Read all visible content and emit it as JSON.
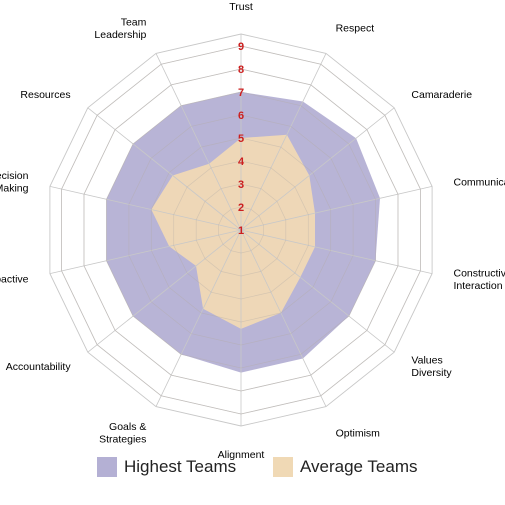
{
  "chart_data": {
    "type": "radar",
    "axes": [
      "Trust",
      "Respect",
      "Camaraderie",
      "Communication",
      "Constructive\nInteraction",
      "Values\nDiversity",
      "Optimism",
      "Alignment",
      "Goals &\nStrategies",
      "Accountability",
      "Proactive",
      "Decision\nMaking",
      "Resources",
      "Team\nLeadership"
    ],
    "ticks": [
      "1",
      "2",
      "3",
      "4",
      "5",
      "6",
      "7",
      "8",
      "9"
    ],
    "rmin": 1,
    "rmax": 9,
    "series": [
      {
        "name": "Highest Teams",
        "color": "#b4b0d4",
        "values": [
          7.0,
          7.2,
          7.4,
          7.2,
          7.0,
          7.0,
          7.2,
          7.2,
          7.0,
          7.0,
          7.0,
          7.0,
          7.0,
          7.0
        ]
      },
      {
        "name": "Average Teams",
        "color": "#f0d9b5",
        "values": [
          5.0,
          5.6,
          4.8,
          4.3,
          4.3,
          4.3,
          5.0,
          5.3,
          4.8,
          3.5,
          4.2,
          5.0,
          4.8,
          4.2
        ]
      }
    ],
    "grid": true
  },
  "legend": {
    "highest": "Highest Teams",
    "average": "Average Teams",
    "highest_color": "#b4b0d4",
    "average_color": "#f0d9b5"
  }
}
